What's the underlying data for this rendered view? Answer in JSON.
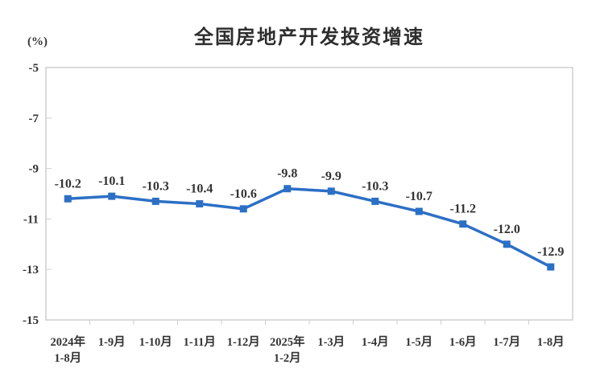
{
  "page": {
    "title": "全国房地产开发投资增速",
    "background_color": "#ffffff"
  },
  "chart_data": {
    "type": "line",
    "title": "全国房地产开发投资增速",
    "xlabel": "",
    "ylabel": "(%)",
    "categories": [
      "2024年1-8月",
      "1-9月",
      "1-10月",
      "1-11月",
      "1-12月",
      "2025年1-2月",
      "1-3月",
      "1-4月",
      "1-5月",
      "1-6月",
      "1-7月",
      "1-8月"
    ],
    "category_lines": [
      [
        "2024年",
        "1-8月"
      ],
      [
        "1-9月"
      ],
      [
        "1-10月"
      ],
      [
        "1-11月"
      ],
      [
        "1-12月"
      ],
      [
        "2025年",
        "1-2月"
      ],
      [
        "1-3月"
      ],
      [
        "1-4月"
      ],
      [
        "1-5月"
      ],
      [
        "1-6月"
      ],
      [
        "1-7月"
      ],
      [
        "1-8月"
      ]
    ],
    "series": [
      {
        "name": "全国房地产开发投资增速",
        "values": [
          -10.2,
          -10.1,
          -10.3,
          -10.4,
          -10.6,
          -9.8,
          -9.9,
          -10.3,
          -10.7,
          -11.2,
          -12.0,
          -12.9
        ]
      }
    ],
    "data_labels": [
      "-10.2",
      "-10.1",
      "-10.3",
      "-10.4",
      "-10.6",
      "-9.8",
      "-9.9",
      "-10.3",
      "-10.7",
      "-11.2",
      "-12.0",
      "-12.9"
    ],
    "y_ticks": [
      -5,
      -7,
      -9,
      -11,
      -13,
      -15
    ],
    "y_tick_labels": [
      "-5",
      "-7",
      "-9",
      "-11",
      "-13",
      "-15"
    ],
    "ylim": [
      -15,
      -5
    ],
    "grid": false,
    "legend": "none",
    "marker": "square",
    "line_color": "#2c6fc6",
    "text_color": "#333333",
    "axis_color": "#cfcfcf"
  }
}
